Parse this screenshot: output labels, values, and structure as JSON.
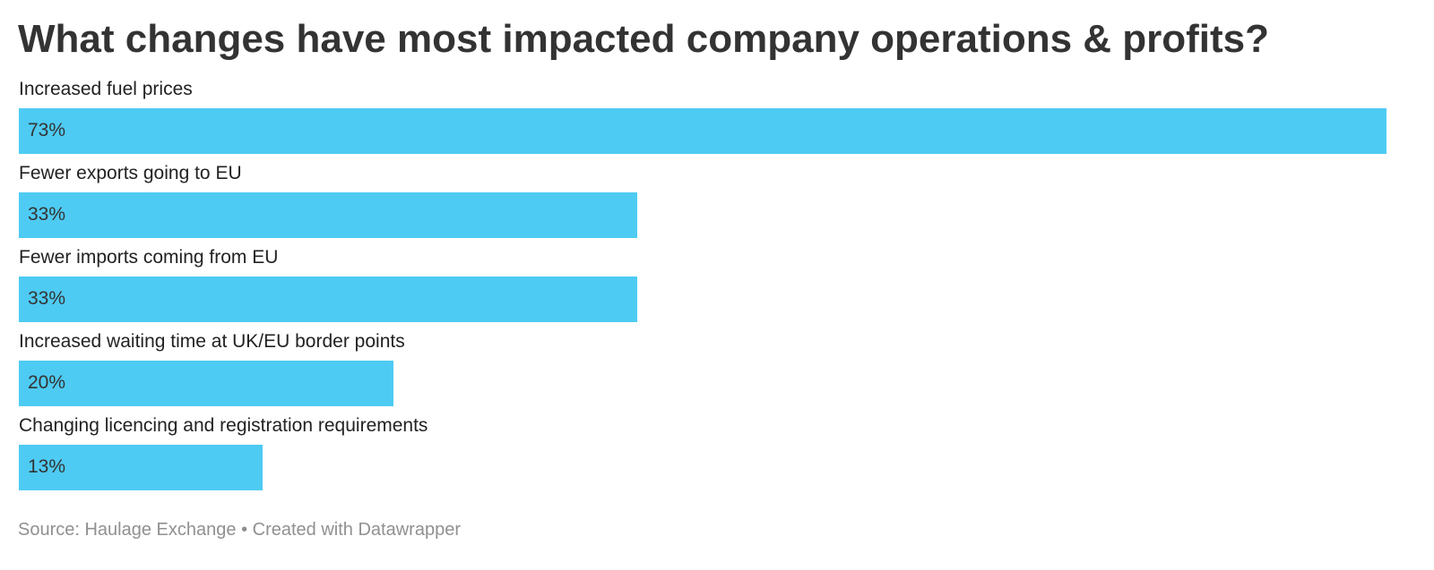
{
  "chart_data": {
    "type": "bar",
    "orientation": "horizontal",
    "title": "What changes have most impacted company operations & profits?",
    "categories": [
      "Increased fuel prices",
      "Fewer exports going to EU",
      "Fewer imports coming from EU",
      "Increased waiting time at UK/EU border points",
      "Changing licencing and registration requirements"
    ],
    "values": [
      73,
      33,
      33,
      20,
      13
    ],
    "value_labels": [
      "73%",
      "33%",
      "33%",
      "20%",
      "13%"
    ],
    "xlim": [
      0,
      73
    ],
    "grid": false,
    "legend": "none",
    "bar_color": "#4ecbf3"
  },
  "footer": {
    "source_text": "Source: Haulage Exchange",
    "separator": "•",
    "credit_text": "Created with Datawrapper"
  }
}
